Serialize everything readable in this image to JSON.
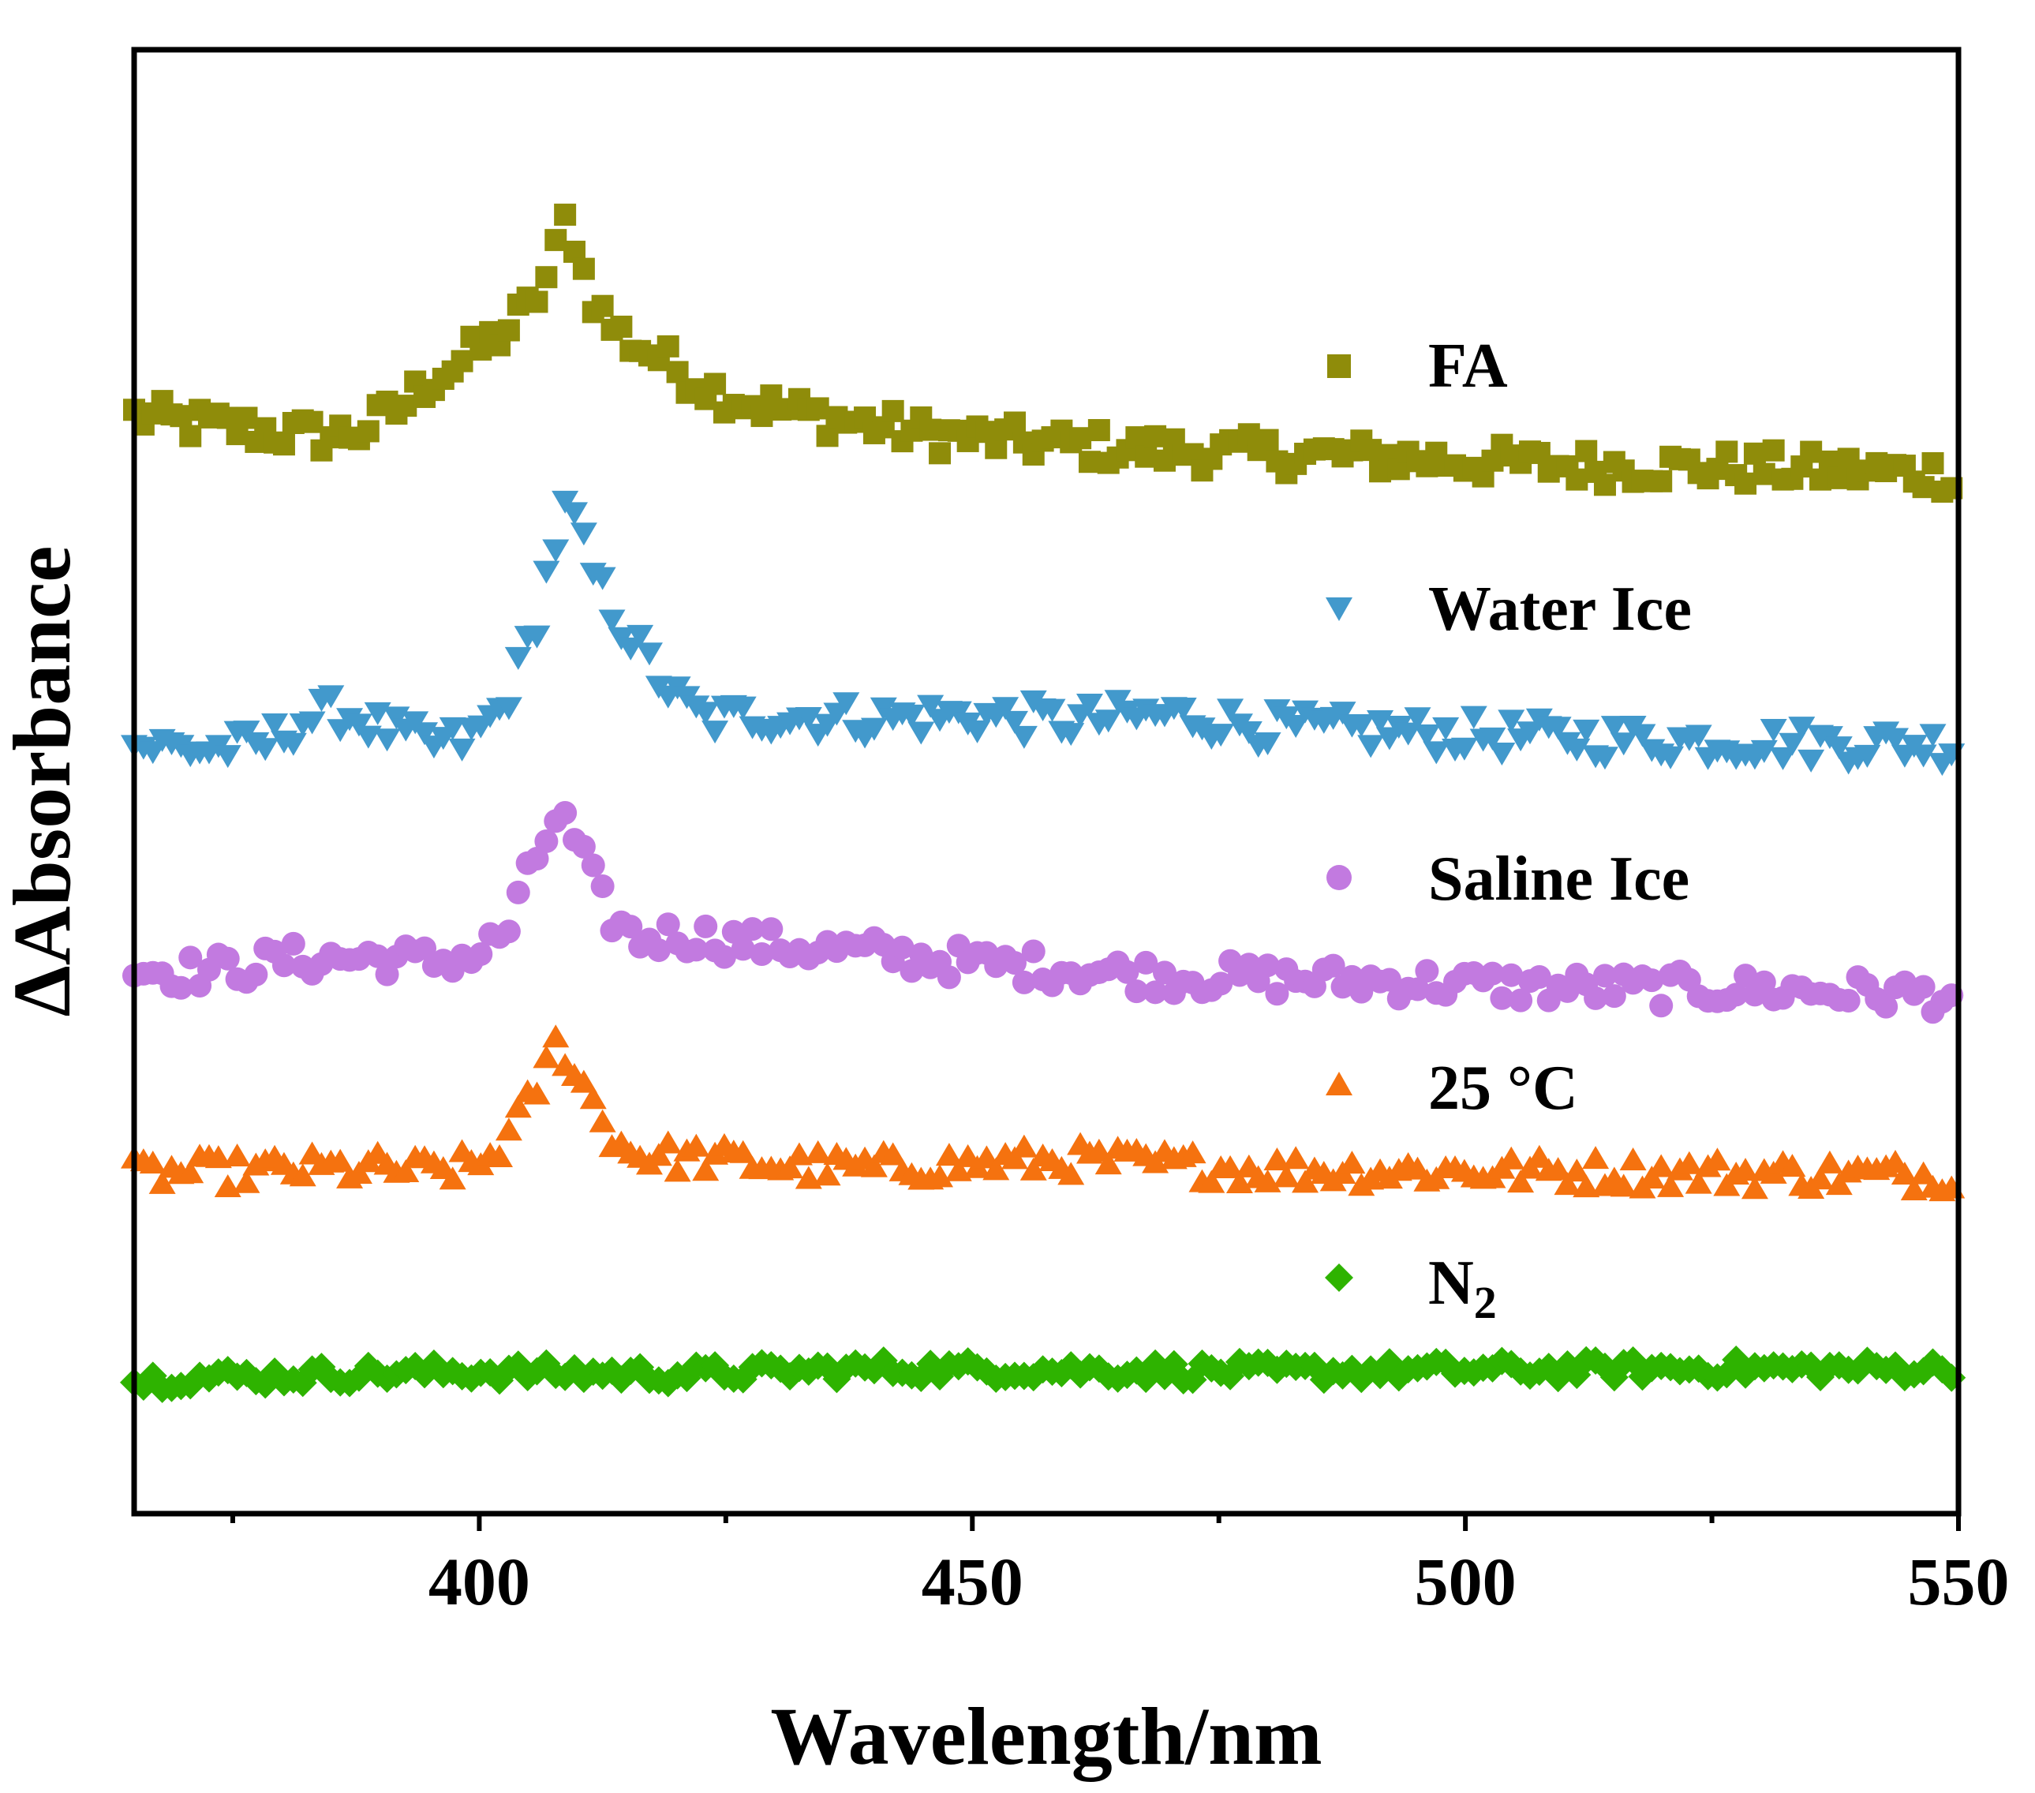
{
  "chart_data": {
    "type": "scatter",
    "title": "",
    "xlabel": "Wavelength/nm",
    "ylabel": "ΔAbsorbance",
    "xlim": [
      365,
      550
    ],
    "ylim": [
      0,
      100
    ],
    "xticks": [
      400,
      450,
      500,
      550
    ],
    "xtick_labels": [
      "400",
      "450",
      "500",
      "550"
    ],
    "x_minor_ticks": [
      375,
      425,
      475,
      525
    ],
    "yticks_shown": false,
    "legend_position": "right",
    "series": [
      {
        "name": "FA",
        "marker": "square",
        "color": "#8f8c0a",
        "points": [
          [
            365,
            75
          ],
          [
            370,
            74.5
          ],
          [
            375,
            74.2
          ],
          [
            380,
            73.8
          ],
          [
            385,
            73.6
          ],
          [
            388,
            74
          ],
          [
            392,
            75.5
          ],
          [
            395,
            77.5
          ],
          [
            398,
            78.6
          ],
          [
            401,
            80
          ],
          [
            403,
            81
          ],
          [
            405,
            82.3
          ],
          [
            407,
            84.6
          ],
          [
            408,
            86.6
          ],
          [
            409,
            88.9
          ],
          [
            410,
            86.3
          ],
          [
            411,
            83.8
          ],
          [
            413,
            81.4
          ],
          [
            415,
            80.2
          ],
          [
            418,
            79.1
          ],
          [
            420,
            78.2
          ],
          [
            424,
            76.7
          ],
          [
            428,
            75.8
          ],
          [
            435,
            74.9
          ],
          [
            445,
            73.8
          ],
          [
            455,
            73.2
          ],
          [
            470,
            72.6
          ],
          [
            490,
            72.2
          ],
          [
            510,
            71.6
          ],
          [
            530,
            71.4
          ],
          [
            550,
            71
          ]
        ],
        "noise": 1.3,
        "step": 0.95
      },
      {
        "name": "Water Ice",
        "marker": "triangle-down",
        "color": "#4299cc",
        "points": [
          [
            365,
            52.5
          ],
          [
            372,
            52.2
          ],
          [
            378,
            52.4
          ],
          [
            382,
            54.2
          ],
          [
            386,
            54.8
          ],
          [
            390,
            53.6
          ],
          [
            395,
            52.5
          ],
          [
            399,
            52.8
          ],
          [
            402,
            54.8
          ],
          [
            404,
            57.5
          ],
          [
            406,
            61.5
          ],
          [
            407,
            64.6
          ],
          [
            408,
            67
          ],
          [
            409,
            68.9
          ],
          [
            410,
            67.2
          ],
          [
            411,
            64.9
          ],
          [
            413,
            62.3
          ],
          [
            415,
            60.2
          ],
          [
            418,
            57.3
          ],
          [
            420,
            55.6
          ],
          [
            423,
            54.2
          ],
          [
            428,
            54.5
          ],
          [
            440,
            54.3
          ],
          [
            450,
            54.5
          ],
          [
            460,
            54.1
          ],
          [
            470,
            54.6
          ],
          [
            480,
            53.7
          ],
          [
            500,
            53.2
          ],
          [
            520,
            52.8
          ],
          [
            550,
            52.5
          ]
        ],
        "noise": 1.3,
        "step": 0.95
      },
      {
        "name": "Saline Ice",
        "marker": "circle",
        "color": "#c27ae0",
        "points": [
          [
            365,
            37.2
          ],
          [
            370,
            37
          ],
          [
            375,
            37.2
          ],
          [
            380,
            37.8
          ],
          [
            385,
            37.9
          ],
          [
            390,
            38
          ],
          [
            395,
            37.7
          ],
          [
            400,
            38.2
          ],
          [
            403,
            40
          ],
          [
            405,
            43.5
          ],
          [
            407,
            46.5
          ],
          [
            408,
            47.8
          ],
          [
            409,
            46.8
          ],
          [
            411,
            44
          ],
          [
            413,
            41
          ],
          [
            416,
            39.2
          ],
          [
            420,
            39.5
          ],
          [
            425,
            39.2
          ],
          [
            430,
            38.8
          ],
          [
            440,
            38.3
          ],
          [
            450,
            37.6
          ],
          [
            460,
            37.2
          ],
          [
            470,
            36.7
          ],
          [
            490,
            36.4
          ],
          [
            510,
            35.9
          ],
          [
            530,
            35.8
          ],
          [
            550,
            35.4
          ]
        ],
        "noise": 1.2,
        "step": 0.95
      },
      {
        "name": "25 °C",
        "marker": "triangle-up",
        "color": "#f5720f",
        "points": [
          [
            365,
            23.2
          ],
          [
            380,
            23.5
          ],
          [
            390,
            23.6
          ],
          [
            395,
            23.4
          ],
          [
            400,
            23.8
          ],
          [
            403,
            25.8
          ],
          [
            405,
            28
          ],
          [
            407,
            30.8
          ],
          [
            408,
            32.4
          ],
          [
            409,
            31.2
          ],
          [
            411,
            28.8
          ],
          [
            413,
            26.3
          ],
          [
            415,
            24.8
          ],
          [
            418,
            24.4
          ],
          [
            423,
            24.3
          ],
          [
            430,
            23.8
          ],
          [
            440,
            23.6
          ],
          [
            460,
            24.2
          ],
          [
            480,
            23.5
          ],
          [
            500,
            23.4
          ],
          [
            520,
            23.3
          ],
          [
            550,
            23.1
          ]
        ],
        "noise": 1.1,
        "step": 0.95
      },
      {
        "name": "N₂",
        "marker": "diamond",
        "color": "#2eb300",
        "points": [
          [
            365,
            9
          ],
          [
            370,
            9.3
          ],
          [
            380,
            9.4
          ],
          [
            390,
            9.6
          ],
          [
            400,
            9.7
          ],
          [
            420,
            9.5
          ],
          [
            440,
            9.9
          ],
          [
            460,
            9.8
          ],
          [
            480,
            9.7
          ],
          [
            500,
            9.8
          ],
          [
            520,
            9.9
          ],
          [
            550,
            9.9
          ]
        ],
        "noise": 0.65,
        "step": 0.95
      }
    ]
  },
  "legend": {
    "items": [
      {
        "label": "FA",
        "marker": "square",
        "color": "#8f8c0a"
      },
      {
        "label": "Water Ice",
        "marker": "triangle-down",
        "color": "#4299cc"
      },
      {
        "label": "Saline Ice",
        "marker": "circle",
        "color": "#c27ae0"
      },
      {
        "label": "25 °C",
        "marker": "triangle-up",
        "color": "#f5720f"
      },
      {
        "label": "N",
        "subscript": "2",
        "marker": "diamond",
        "color": "#2eb300"
      }
    ]
  }
}
